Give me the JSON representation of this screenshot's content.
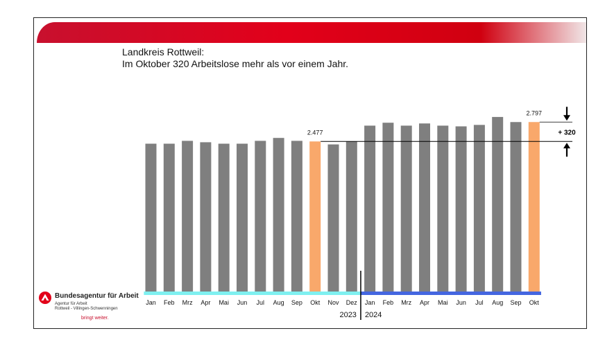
{
  "header": {
    "title_line1": "Landkreis Rottweil:",
    "title_line2": "Im Oktober 320 Arbeitslose mehr als vor einem Jahr."
  },
  "logo": {
    "org_name": "Bundesagentur für Arbeit",
    "sub_line1": "Agentur für Arbeit",
    "sub_line2": "Rottweil - Villingen-Schwenningen",
    "slogan": "bringt weiter."
  },
  "colors": {
    "bar_default": "#7f7f7f",
    "bar_highlight": "#f9a86b",
    "band_2023": "#7ff0f0",
    "band_2024": "#4466e0",
    "brand_red": "#e2001a"
  },
  "chart_data": {
    "type": "bar",
    "categories": [
      "Jan",
      "Feb",
      "Mrz",
      "Apr",
      "Mai",
      "Jun",
      "Jul",
      "Aug",
      "Sep",
      "Okt",
      "Nov",
      "Dez",
      "Jan",
      "Feb",
      "Mrz",
      "Apr",
      "Mai",
      "Jun",
      "Jul",
      "Aug",
      "Sep",
      "Okt"
    ],
    "values": [
      2440,
      2440,
      2487,
      2464,
      2440,
      2440,
      2487,
      2535,
      2487,
      2477,
      2428,
      2477,
      2738,
      2786,
      2738,
      2774,
      2738,
      2726,
      2750,
      2881,
      2797,
      2797
    ],
    "highlight_indices": [
      9,
      21
    ],
    "data_labels": [
      {
        "index": 9,
        "text": "2.477"
      },
      {
        "index": 21,
        "text": "2.797"
      }
    ],
    "groups": [
      {
        "label": "2023",
        "start": 0,
        "end": 11
      },
      {
        "label": "2024",
        "start": 12,
        "end": 21
      }
    ],
    "annotation": "+ 320",
    "ylim": [
      0,
      3200
    ],
    "title": "",
    "xlabel": "",
    "ylabel": "",
    "grid": false,
    "legend": "none"
  }
}
